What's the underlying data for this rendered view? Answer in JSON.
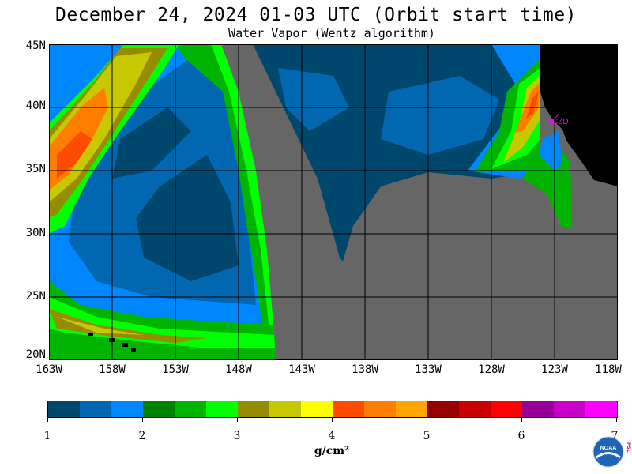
{
  "header": {
    "title": "December 24, 2024  01-03 UTC  (Orbit start time)",
    "subtitle": "Water Vapor (Wentz algorithm)"
  },
  "map": {
    "lat_labels": [
      "45N",
      "40N",
      "35N",
      "30N",
      "25N",
      "20N"
    ],
    "lon_labels": [
      "163W",
      "158W",
      "153W",
      "148W",
      "143W",
      "138W",
      "133W",
      "128W",
      "123W",
      "118W"
    ],
    "station_label": "CZD",
    "colors": {
      "no_data": "#666666",
      "land": "#000000",
      "grid": "#000000",
      "station": "#ff00ff"
    }
  },
  "colorbar": {
    "colors": [
      "#00476e",
      "#0067b0",
      "#0087ff",
      "#008200",
      "#00b400",
      "#00ff00",
      "#968c00",
      "#c8c800",
      "#ffff00",
      "#ff4b00",
      "#ff7d00",
      "#ffa500",
      "#960000",
      "#c80000",
      "#ff0000",
      "#960096",
      "#c800c8",
      "#ff00ff"
    ],
    "tick_labels": [
      "1",
      "2",
      "3",
      "4",
      "5",
      "6",
      "7"
    ],
    "units": "g/cm²"
  },
  "logo": {
    "text": "NOAA",
    "side_text": "PSL"
  }
}
